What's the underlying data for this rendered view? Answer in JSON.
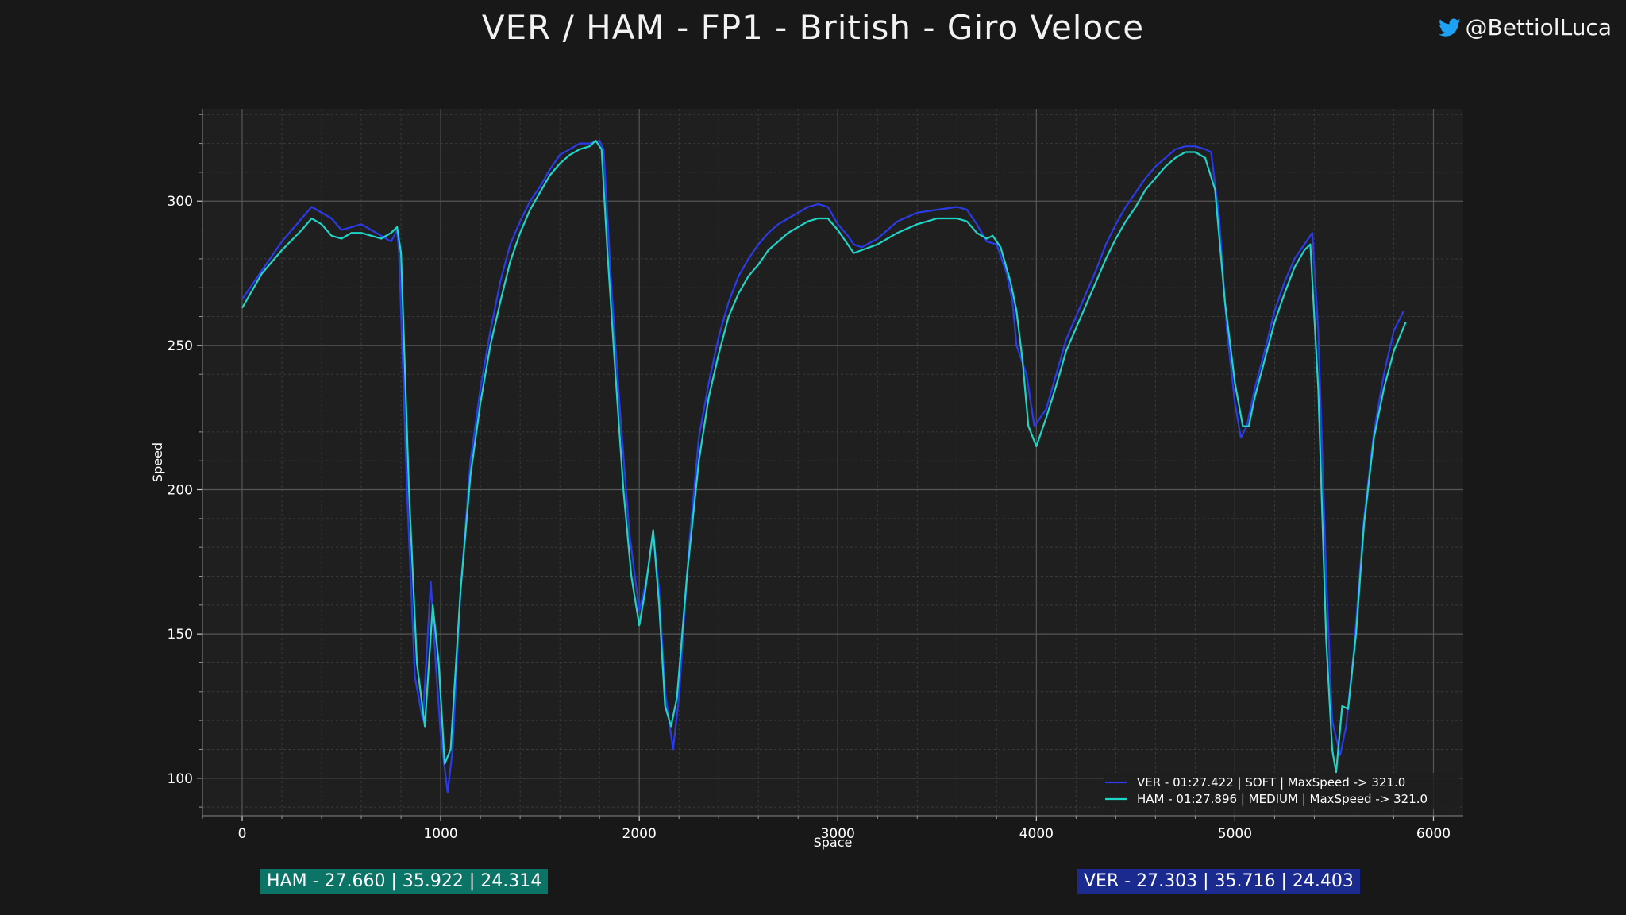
{
  "header": {
    "title": "VER / HAM - FP1 - British - Giro Veloce",
    "handle": "@BettiolLuca",
    "handle_icon": "twitter-bird-icon",
    "handle_icon_color": "#1da1f2"
  },
  "colors": {
    "background": "#181818",
    "plot_background": "#1f1f1f",
    "ver": "#2b3be8",
    "ham": "#1ed6c8",
    "grid_major": "#565656",
    "grid_minor": "#3a3a3a"
  },
  "sectors": {
    "ham": "HAM - 27.660 | 35.922 | 24.314",
    "ver": "VER - 27.303 | 35.716 | 24.403"
  },
  "chart_data": {
    "type": "line",
    "title": "",
    "xlabel": "Space",
    "ylabel": "Speed",
    "xlim": [
      -200,
      6150
    ],
    "ylim": [
      87,
      332
    ],
    "xticks": [
      0,
      1000,
      2000,
      3000,
      4000,
      5000,
      6000
    ],
    "yticks": [
      100,
      150,
      200,
      250,
      300
    ],
    "grid": true,
    "legend_position": "bottom-right",
    "series": [
      {
        "name": "VER - 01:27.422 | SOFT |  MaxSpeed -> 321.0",
        "color": "#2b3be8",
        "points": [
          [
            0,
            266
          ],
          [
            100,
            276
          ],
          [
            200,
            286
          ],
          [
            300,
            294
          ],
          [
            350,
            298
          ],
          [
            450,
            294
          ],
          [
            500,
            290
          ],
          [
            600,
            292
          ],
          [
            700,
            288
          ],
          [
            750,
            286
          ],
          [
            780,
            290
          ],
          [
            790,
            282
          ],
          [
            830,
            200
          ],
          [
            870,
            135
          ],
          [
            910,
            120
          ],
          [
            950,
            168
          ],
          [
            975,
            140
          ],
          [
            1000,
            115
          ],
          [
            1035,
            95
          ],
          [
            1060,
            110
          ],
          [
            1100,
            165
          ],
          [
            1150,
            210
          ],
          [
            1200,
            235
          ],
          [
            1250,
            255
          ],
          [
            1300,
            272
          ],
          [
            1350,
            285
          ],
          [
            1400,
            293
          ],
          [
            1450,
            300
          ],
          [
            1500,
            305
          ],
          [
            1550,
            311
          ],
          [
            1600,
            316
          ],
          [
            1650,
            318
          ],
          [
            1700,
            320
          ],
          [
            1750,
            320
          ],
          [
            1800,
            321
          ],
          [
            1820,
            318
          ],
          [
            1860,
            270
          ],
          [
            1900,
            230
          ],
          [
            1950,
            185
          ],
          [
            2000,
            158
          ],
          [
            2040,
            170
          ],
          [
            2070,
            185
          ],
          [
            2100,
            165
          ],
          [
            2130,
            130
          ],
          [
            2160,
            115
          ],
          [
            2170,
            110
          ],
          [
            2200,
            128
          ],
          [
            2250,
            180
          ],
          [
            2300,
            218
          ],
          [
            2350,
            237
          ],
          [
            2400,
            253
          ],
          [
            2450,
            265
          ],
          [
            2500,
            274
          ],
          [
            2550,
            280
          ],
          [
            2600,
            285
          ],
          [
            2650,
            289
          ],
          [
            2700,
            292
          ],
          [
            2750,
            294
          ],
          [
            2800,
            296
          ],
          [
            2850,
            298
          ],
          [
            2900,
            299
          ],
          [
            2950,
            298
          ],
          [
            3000,
            292
          ],
          [
            3050,
            288
          ],
          [
            3080,
            285
          ],
          [
            3120,
            284
          ],
          [
            3200,
            287
          ],
          [
            3300,
            293
          ],
          [
            3400,
            296
          ],
          [
            3500,
            297
          ],
          [
            3600,
            298
          ],
          [
            3650,
            297
          ],
          [
            3700,
            292
          ],
          [
            3750,
            286
          ],
          [
            3800,
            285
          ],
          [
            3850,
            275
          ],
          [
            3880,
            265
          ],
          [
            3900,
            250
          ],
          [
            3950,
            240
          ],
          [
            3990,
            222
          ],
          [
            4050,
            228
          ],
          [
            4100,
            240
          ],
          [
            4150,
            252
          ],
          [
            4200,
            260
          ],
          [
            4250,
            268
          ],
          [
            4300,
            276
          ],
          [
            4350,
            285
          ],
          [
            4400,
            292
          ],
          [
            4450,
            298
          ],
          [
            4500,
            303
          ],
          [
            4550,
            308
          ],
          [
            4600,
            312
          ],
          [
            4650,
            315
          ],
          [
            4700,
            318
          ],
          [
            4750,
            319
          ],
          [
            4800,
            319
          ],
          [
            4850,
            318
          ],
          [
            4880,
            317
          ],
          [
            4920,
            295
          ],
          [
            4960,
            255
          ],
          [
            5000,
            230
          ],
          [
            5030,
            218
          ],
          [
            5060,
            222
          ],
          [
            5100,
            235
          ],
          [
            5150,
            248
          ],
          [
            5200,
            262
          ],
          [
            5250,
            272
          ],
          [
            5300,
            280
          ],
          [
            5360,
            286
          ],
          [
            5390,
            289
          ],
          [
            5420,
            255
          ],
          [
            5460,
            170
          ],
          [
            5490,
            120
          ],
          [
            5530,
            108
          ],
          [
            5560,
            118
          ],
          [
            5600,
            145
          ],
          [
            5650,
            190
          ],
          [
            5700,
            220
          ],
          [
            5750,
            240
          ],
          [
            5800,
            255
          ],
          [
            5850,
            262
          ]
        ]
      },
      {
        "name": "HAM - 01:27.896 | MEDIUM |  MaxSpeed -> 321.0",
        "color": "#1ed6c8",
        "points": [
          [
            0,
            263
          ],
          [
            100,
            275
          ],
          [
            200,
            283
          ],
          [
            300,
            290
          ],
          [
            350,
            294
          ],
          [
            400,
            292
          ],
          [
            450,
            288
          ],
          [
            500,
            287
          ],
          [
            550,
            289
          ],
          [
            600,
            289
          ],
          [
            650,
            288
          ],
          [
            700,
            287
          ],
          [
            750,
            289
          ],
          [
            780,
            291
          ],
          [
            800,
            282
          ],
          [
            840,
            200
          ],
          [
            880,
            140
          ],
          [
            920,
            118
          ],
          [
            960,
            160
          ],
          [
            990,
            140
          ],
          [
            1020,
            105
          ],
          [
            1050,
            110
          ],
          [
            1100,
            165
          ],
          [
            1150,
            205
          ],
          [
            1200,
            230
          ],
          [
            1250,
            250
          ],
          [
            1300,
            265
          ],
          [
            1350,
            279
          ],
          [
            1400,
            289
          ],
          [
            1450,
            297
          ],
          [
            1500,
            303
          ],
          [
            1550,
            309
          ],
          [
            1600,
            313
          ],
          [
            1650,
            316
          ],
          [
            1700,
            318
          ],
          [
            1750,
            319
          ],
          [
            1780,
            321
          ],
          [
            1810,
            318
          ],
          [
            1840,
            282
          ],
          [
            1880,
            240
          ],
          [
            1920,
            200
          ],
          [
            1960,
            170
          ],
          [
            2000,
            153
          ],
          [
            2030,
            165
          ],
          [
            2070,
            186
          ],
          [
            2100,
            160
          ],
          [
            2130,
            125
          ],
          [
            2160,
            118
          ],
          [
            2190,
            128
          ],
          [
            2240,
            170
          ],
          [
            2300,
            210
          ],
          [
            2350,
            232
          ],
          [
            2400,
            247
          ],
          [
            2450,
            260
          ],
          [
            2500,
            268
          ],
          [
            2550,
            274
          ],
          [
            2600,
            278
          ],
          [
            2650,
            283
          ],
          [
            2700,
            286
          ],
          [
            2750,
            289
          ],
          [
            2800,
            291
          ],
          [
            2850,
            293
          ],
          [
            2900,
            294
          ],
          [
            2950,
            294
          ],
          [
            3000,
            290
          ],
          [
            3050,
            285
          ],
          [
            3080,
            282
          ],
          [
            3120,
            283
          ],
          [
            3200,
            285
          ],
          [
            3300,
            289
          ],
          [
            3400,
            292
          ],
          [
            3500,
            294
          ],
          [
            3600,
            294
          ],
          [
            3650,
            293
          ],
          [
            3700,
            289
          ],
          [
            3750,
            287
          ],
          [
            3780,
            288
          ],
          [
            3820,
            284
          ],
          [
            3870,
            272
          ],
          [
            3900,
            262
          ],
          [
            3930,
            245
          ],
          [
            3960,
            222
          ],
          [
            4000,
            215
          ],
          [
            4050,
            225
          ],
          [
            4100,
            236
          ],
          [
            4150,
            248
          ],
          [
            4200,
            256
          ],
          [
            4250,
            264
          ],
          [
            4300,
            272
          ],
          [
            4350,
            280
          ],
          [
            4400,
            287
          ],
          [
            4450,
            293
          ],
          [
            4500,
            298
          ],
          [
            4550,
            304
          ],
          [
            4600,
            308
          ],
          [
            4650,
            312
          ],
          [
            4700,
            315
          ],
          [
            4750,
            317
          ],
          [
            4800,
            317
          ],
          [
            4850,
            315
          ],
          [
            4900,
            304
          ],
          [
            4950,
            265
          ],
          [
            5000,
            237
          ],
          [
            5040,
            222
          ],
          [
            5070,
            222
          ],
          [
            5100,
            232
          ],
          [
            5150,
            245
          ],
          [
            5200,
            258
          ],
          [
            5250,
            268
          ],
          [
            5300,
            277
          ],
          [
            5350,
            283
          ],
          [
            5380,
            285
          ],
          [
            5420,
            235
          ],
          [
            5460,
            148
          ],
          [
            5490,
            110
          ],
          [
            5510,
            102
          ],
          [
            5540,
            125
          ],
          [
            5570,
            124
          ],
          [
            5610,
            150
          ],
          [
            5650,
            188
          ],
          [
            5700,
            218
          ],
          [
            5750,
            235
          ],
          [
            5800,
            248
          ],
          [
            5860,
            258
          ]
        ]
      }
    ]
  }
}
